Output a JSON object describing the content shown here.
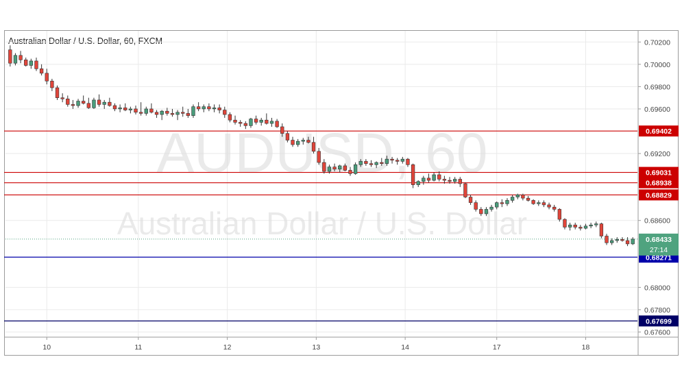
{
  "chart_data": {
    "type": "candlestick",
    "title": "Australian Dollar / U.S. Dollar, 60, FXCM",
    "watermark_symbol": "AUDUSD, 60",
    "watermark_name": "Australian Dollar / U.S. Dollar",
    "ylim": [
      0.6756,
      0.703
    ],
    "y_ticks": [
      "0.70200",
      "0.70000",
      "0.69800",
      "0.69600",
      "0.69200",
      "0.68600",
      "0.68000",
      "0.67800",
      "0.67600"
    ],
    "x_ticks": [
      "10",
      "11",
      "12",
      "13",
      "14",
      "17",
      "18"
    ],
    "x_tick_bars": [
      7,
      24.5,
      41.5,
      58.5,
      75.5,
      93,
      110
    ],
    "total_bars": 120,
    "horizontal_levels": [
      {
        "value": 0.69402,
        "label": "0.69402",
        "color": "#cc0000"
      },
      {
        "value": 0.69031,
        "label": "0.69031",
        "color": "#cc0000"
      },
      {
        "value": 0.68938,
        "label": "0.68938",
        "color": "#cc0000"
      },
      {
        "value": 0.68829,
        "label": "0.68829",
        "color": "#cc0000"
      },
      {
        "value": 0.68271,
        "label": "0.68271",
        "color": "#0000aa"
      },
      {
        "value": 0.67699,
        "label": "0.67699",
        "color": "#000066"
      }
    ],
    "last_price": {
      "value": 0.68433,
      "label": "0.68433",
      "countdown": "27:14",
      "color": "#4fa37f"
    },
    "colors": {
      "up": "#4a9c7b",
      "down": "#e0453a",
      "axis_text": "#444444",
      "grid": "#eaeaea"
    },
    "candles": [
      [
        0.7013,
        0.7017,
        0.6998,
        0.7001
      ],
      [
        0.7001,
        0.701,
        0.6999,
        0.7008
      ],
      [
        0.7008,
        0.7012,
        0.7001,
        0.7004
      ],
      [
        0.7004,
        0.7006,
        0.6998,
        0.6999
      ],
      [
        0.6999,
        0.7005,
        0.6996,
        0.7003
      ],
      [
        0.7003,
        0.7006,
        0.6994,
        0.6996
      ],
      [
        0.6996,
        0.7,
        0.699,
        0.6992
      ],
      [
        0.6992,
        0.6996,
        0.6982,
        0.6985
      ],
      [
        0.6985,
        0.6987,
        0.6976,
        0.6979
      ],
      [
        0.6979,
        0.6981,
        0.6968,
        0.697
      ],
      [
        0.697,
        0.6974,
        0.6966,
        0.6969
      ],
      [
        0.6969,
        0.6972,
        0.6962,
        0.6964
      ],
      [
        0.6964,
        0.6968,
        0.696,
        0.6963
      ],
      [
        0.6963,
        0.6969,
        0.6961,
        0.6967
      ],
      [
        0.6967,
        0.6972,
        0.6964,
        0.6965
      ],
      [
        0.6965,
        0.697,
        0.696,
        0.6961
      ],
      [
        0.6961,
        0.697,
        0.696,
        0.6968
      ],
      [
        0.6968,
        0.6973,
        0.6962,
        0.6964
      ],
      [
        0.6964,
        0.6968,
        0.696,
        0.6966
      ],
      [
        0.6966,
        0.697,
        0.6962,
        0.6963
      ],
      [
        0.6963,
        0.6965,
        0.6958,
        0.696
      ],
      [
        0.696,
        0.6964,
        0.6957,
        0.6961
      ],
      [
        0.6961,
        0.6965,
        0.6958,
        0.6959
      ],
      [
        0.6959,
        0.6962,
        0.6956,
        0.696
      ],
      [
        0.696,
        0.6963,
        0.6955,
        0.6957
      ],
      [
        0.6957,
        0.6966,
        0.6954,
        0.6956
      ],
      [
        0.6956,
        0.6962,
        0.6954,
        0.696
      ],
      [
        0.696,
        0.6965,
        0.6956,
        0.6957
      ],
      [
        0.6957,
        0.6959,
        0.6952,
        0.6955
      ],
      [
        0.6955,
        0.6959,
        0.695,
        0.6958
      ],
      [
        0.6958,
        0.6961,
        0.6954,
        0.6956
      ],
      [
        0.6956,
        0.696,
        0.6953,
        0.6955
      ],
      [
        0.6955,
        0.6959,
        0.695,
        0.6957
      ],
      [
        0.6957,
        0.6962,
        0.6953,
        0.6956
      ],
      [
        0.6956,
        0.696,
        0.6952,
        0.6954
      ],
      [
        0.6954,
        0.6964,
        0.6952,
        0.6962
      ],
      [
        0.6962,
        0.6966,
        0.6958,
        0.696
      ],
      [
        0.696,
        0.6964,
        0.6957,
        0.6962
      ],
      [
        0.6962,
        0.6965,
        0.6958,
        0.696
      ],
      [
        0.696,
        0.6964,
        0.6957,
        0.6961
      ],
      [
        0.6961,
        0.6964,
        0.6956,
        0.6959
      ],
      [
        0.6959,
        0.6962,
        0.6952,
        0.6955
      ],
      [
        0.6955,
        0.6957,
        0.6948,
        0.695
      ],
      [
        0.695,
        0.6954,
        0.6946,
        0.6948
      ],
      [
        0.6948,
        0.695,
        0.6944,
        0.6947
      ],
      [
        0.6947,
        0.6949,
        0.6942,
        0.6945
      ],
      [
        0.6945,
        0.6952,
        0.6943,
        0.6951
      ],
      [
        0.6951,
        0.6954,
        0.6946,
        0.6948
      ],
      [
        0.6948,
        0.6952,
        0.6945,
        0.695
      ],
      [
        0.695,
        0.6956,
        0.6946,
        0.6947
      ],
      [
        0.6947,
        0.6952,
        0.6944,
        0.6949
      ],
      [
        0.6949,
        0.6951,
        0.6943,
        0.6944
      ],
      [
        0.6944,
        0.6947,
        0.6935,
        0.6938
      ],
      [
        0.6938,
        0.694,
        0.693,
        0.6932
      ],
      [
        0.6932,
        0.6935,
        0.6926,
        0.6928
      ],
      [
        0.6928,
        0.6933,
        0.6926,
        0.6931
      ],
      [
        0.6931,
        0.6934,
        0.6928,
        0.6932
      ],
      [
        0.6932,
        0.6935,
        0.6929,
        0.693
      ],
      [
        0.693,
        0.6935,
        0.692,
        0.6922
      ],
      [
        0.6922,
        0.6925,
        0.691,
        0.6912
      ],
      [
        0.6912,
        0.6915,
        0.6902,
        0.6904
      ],
      [
        0.6904,
        0.691,
        0.6902,
        0.6908
      ],
      [
        0.6908,
        0.6911,
        0.6904,
        0.6906
      ],
      [
        0.6906,
        0.691,
        0.6903,
        0.6909
      ],
      [
        0.6909,
        0.6911,
        0.6904,
        0.6905
      ],
      [
        0.6905,
        0.6908,
        0.69,
        0.6902
      ],
      [
        0.6902,
        0.6912,
        0.6901,
        0.691
      ],
      [
        0.691,
        0.6915,
        0.6908,
        0.6913
      ],
      [
        0.6913,
        0.6915,
        0.6909,
        0.6911
      ],
      [
        0.6911,
        0.6914,
        0.6908,
        0.691
      ],
      [
        0.691,
        0.6913,
        0.6907,
        0.6912
      ],
      [
        0.6912,
        0.6916,
        0.6909,
        0.6911
      ],
      [
        0.6911,
        0.6918,
        0.6909,
        0.6915
      ],
      [
        0.6915,
        0.6917,
        0.6911,
        0.6914
      ],
      [
        0.6914,
        0.6916,
        0.691,
        0.6913
      ],
      [
        0.6913,
        0.6917,
        0.6911,
        0.6915
      ],
      [
        0.6915,
        0.6916,
        0.6908,
        0.691
      ],
      [
        0.691,
        0.6911,
        0.6889,
        0.6892
      ],
      [
        0.6892,
        0.6896,
        0.689,
        0.6895
      ],
      [
        0.6895,
        0.69,
        0.6892,
        0.6898
      ],
      [
        0.6898,
        0.6902,
        0.6894,
        0.6896
      ],
      [
        0.6896,
        0.6903,
        0.6895,
        0.6901
      ],
      [
        0.6901,
        0.6904,
        0.6895,
        0.6897
      ],
      [
        0.6897,
        0.69,
        0.6893,
        0.6896
      ],
      [
        0.6896,
        0.6899,
        0.6893,
        0.6895
      ],
      [
        0.6895,
        0.6899,
        0.6893,
        0.6897
      ],
      [
        0.6897,
        0.6899,
        0.689,
        0.6893
      ],
      [
        0.6893,
        0.6894,
        0.688,
        0.6881
      ],
      [
        0.6881,
        0.6883,
        0.6874,
        0.6876
      ],
      [
        0.6876,
        0.6878,
        0.6868,
        0.687
      ],
      [
        0.687,
        0.6872,
        0.6864,
        0.6866
      ],
      [
        0.6866,
        0.6872,
        0.6864,
        0.687
      ],
      [
        0.687,
        0.6874,
        0.6868,
        0.6872
      ],
      [
        0.6872,
        0.6877,
        0.687,
        0.6876
      ],
      [
        0.6876,
        0.6879,
        0.6872,
        0.6875
      ],
      [
        0.6875,
        0.688,
        0.6873,
        0.6878
      ],
      [
        0.6878,
        0.6883,
        0.6876,
        0.6881
      ],
      [
        0.6881,
        0.6884,
        0.6879,
        0.6883
      ],
      [
        0.6883,
        0.6884,
        0.6878,
        0.688
      ],
      [
        0.688,
        0.6882,
        0.6877,
        0.6878
      ],
      [
        0.6878,
        0.6879,
        0.6874,
        0.6875
      ],
      [
        0.6875,
        0.6878,
        0.6873,
        0.6876
      ],
      [
        0.6876,
        0.6878,
        0.6872,
        0.6874
      ],
      [
        0.6874,
        0.6876,
        0.687,
        0.6872
      ],
      [
        0.6872,
        0.6874,
        0.6868,
        0.687
      ],
      [
        0.687,
        0.6871,
        0.6859,
        0.6861
      ],
      [
        0.6861,
        0.6862,
        0.6852,
        0.6854
      ],
      [
        0.6854,
        0.6858,
        0.6851,
        0.6856
      ],
      [
        0.6856,
        0.6858,
        0.6852,
        0.6854
      ],
      [
        0.6854,
        0.6856,
        0.6851,
        0.6853
      ],
      [
        0.6853,
        0.6857,
        0.6852,
        0.6855
      ],
      [
        0.6855,
        0.6858,
        0.6853,
        0.6856
      ],
      [
        0.6856,
        0.6859,
        0.6854,
        0.6857
      ],
      [
        0.6857,
        0.6858,
        0.6844,
        0.6846
      ],
      [
        0.6846,
        0.6848,
        0.6838,
        0.684
      ],
      [
        0.684,
        0.6844,
        0.6838,
        0.6842
      ],
      [
        0.6842,
        0.6845,
        0.684,
        0.6843
      ],
      [
        0.6843,
        0.6845,
        0.6841,
        0.6842
      ],
      [
        0.6842,
        0.6845,
        0.6837,
        0.6839
      ],
      [
        0.6839,
        0.6845,
        0.6838,
        0.68433
      ]
    ]
  }
}
